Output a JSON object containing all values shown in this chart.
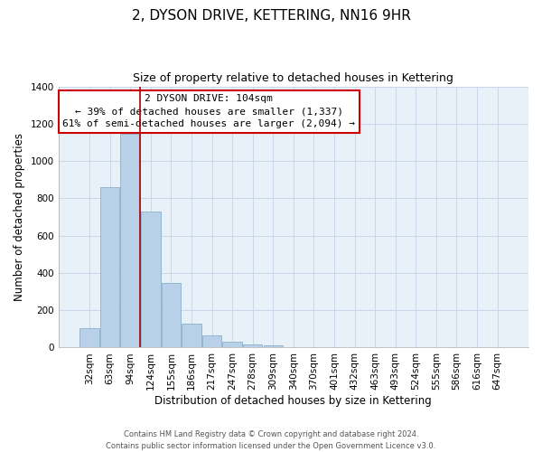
{
  "title": "2, DYSON DRIVE, KETTERING, NN16 9HR",
  "subtitle": "Size of property relative to detached houses in Kettering",
  "xlabel": "Distribution of detached houses by size in Kettering",
  "ylabel": "Number of detached properties",
  "bar_labels": [
    "32sqm",
    "63sqm",
    "94sqm",
    "124sqm",
    "155sqm",
    "186sqm",
    "217sqm",
    "247sqm",
    "278sqm",
    "309sqm",
    "340sqm",
    "370sqm",
    "401sqm",
    "432sqm",
    "463sqm",
    "493sqm",
    "524sqm",
    "555sqm",
    "586sqm",
    "616sqm",
    "647sqm"
  ],
  "bar_values": [
    105,
    860,
    1145,
    730,
    345,
    130,
    63,
    32,
    18,
    12,
    0,
    0,
    0,
    0,
    0,
    0,
    0,
    0,
    0,
    0,
    0
  ],
  "bar_color": "#b8d0e8",
  "bar_edge_color": "#8ab0cc",
  "highlight_line_color": "#aa0000",
  "ylim": [
    0,
    1400
  ],
  "yticks": [
    0,
    200,
    400,
    600,
    800,
    1000,
    1200,
    1400
  ],
  "annotation_title": "2 DYSON DRIVE: 104sqm",
  "annotation_line1": "← 39% of detached houses are smaller (1,337)",
  "annotation_line2": "61% of semi-detached houses are larger (2,094) →",
  "annotation_box_color": "#ffffff",
  "annotation_box_edgecolor": "#cc0000",
  "footnote_line1": "Contains HM Land Registry data © Crown copyright and database right 2024.",
  "footnote_line2": "Contains public sector information licensed under the Open Government Licence v3.0.",
  "background_color": "#ffffff",
  "plot_bg_color": "#e8f0f8",
  "grid_color": "#c8d8e8",
  "title_fontsize": 11,
  "subtitle_fontsize": 9,
  "axis_label_fontsize": 8.5,
  "tick_fontsize": 7.5,
  "annotation_fontsize": 8
}
